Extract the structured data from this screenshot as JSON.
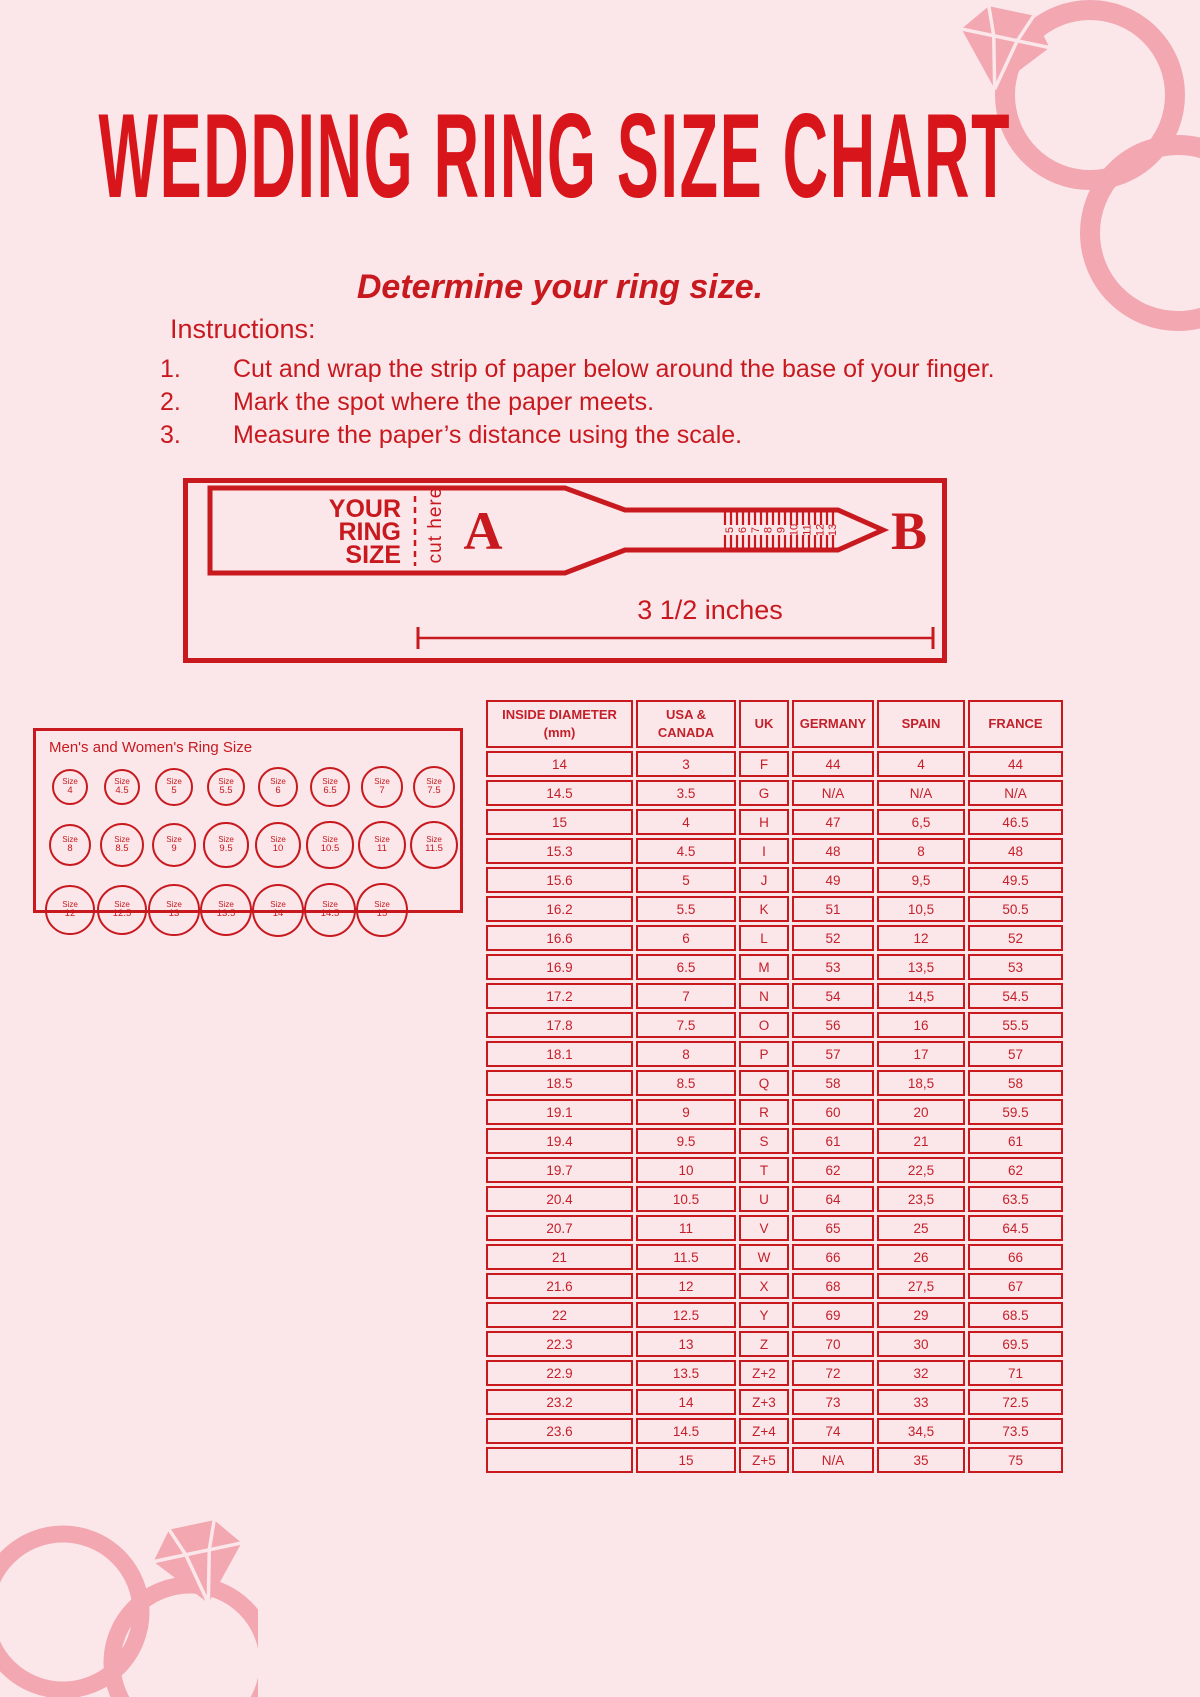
{
  "page": {
    "title": "WEDDING RING SIZE CHART",
    "subtitle": "Determine your ring size.",
    "bg_color": "#fbe7ea",
    "accent_red": "#c8191f",
    "decor_pink": "#f2a7b1"
  },
  "instructions": {
    "heading": "Instructions:",
    "items": [
      {
        "num": "1.",
        "text": "Cut and wrap the strip of paper below around the base of your finger."
      },
      {
        "num": "2.",
        "text": "Mark the spot where the paper meets."
      },
      {
        "num": "3.",
        "text": "Measure the paper’s distance using the scale."
      }
    ]
  },
  "sizer": {
    "label_line1": "YOUR",
    "label_line2": "RING",
    "label_line3": "SIZE",
    "cut_here": "cut here",
    "point_a": "A",
    "point_b": "B",
    "scale_numbers": [
      "5",
      "6",
      "7",
      "8",
      "9",
      "10",
      "11",
      "12",
      "13"
    ],
    "length_label": "3 1/2 inches"
  },
  "ring_sizes": {
    "heading": "Men's and Women's Ring Size",
    "size_word": "Size",
    "sizes": [
      "4",
      "4.5",
      "5",
      "5.5",
      "6",
      "6.5",
      "7",
      "7.5",
      "8",
      "8.5",
      "9",
      "9.5",
      "10",
      "10.5",
      "11",
      "11.5",
      "12",
      "12.5",
      "13",
      "13.5",
      "14",
      "14.5",
      "15"
    ]
  },
  "size_table": {
    "headers": [
      {
        "line1": "INSIDE DIAMETER",
        "line2": "(mm)"
      },
      {
        "line1": "USA &",
        "line2": "CANADA"
      },
      {
        "line1": "UK",
        "line2": ""
      },
      {
        "line1": "GERMANY",
        "line2": ""
      },
      {
        "line1": "SPAIN",
        "line2": ""
      },
      {
        "line1": "FRANCE",
        "line2": ""
      }
    ],
    "rows": [
      [
        "14",
        "3",
        "F",
        "44",
        "4",
        "44"
      ],
      [
        "14.5",
        "3.5",
        "G",
        "N/A",
        "N/A",
        "N/A"
      ],
      [
        "15",
        "4",
        "H",
        "47",
        "6,5",
        "46.5"
      ],
      [
        "15.3",
        "4.5",
        "I",
        "48",
        "8",
        "48"
      ],
      [
        "15.6",
        "5",
        "J",
        "49",
        "9,5",
        "49.5"
      ],
      [
        "16.2",
        "5.5",
        "K",
        "51",
        "10,5",
        "50.5"
      ],
      [
        "16.6",
        "6",
        "L",
        "52",
        "12",
        "52"
      ],
      [
        "16.9",
        "6.5",
        "M",
        "53",
        "13,5",
        "53"
      ],
      [
        "17.2",
        "7",
        "N",
        "54",
        "14,5",
        "54.5"
      ],
      [
        "17.8",
        "7.5",
        "O",
        "56",
        "16",
        "55.5"
      ],
      [
        "18.1",
        "8",
        "P",
        "57",
        "17",
        "57"
      ],
      [
        "18.5",
        "8.5",
        "Q",
        "58",
        "18,5",
        "58"
      ],
      [
        "19.1",
        "9",
        "R",
        "60",
        "20",
        "59.5"
      ],
      [
        "19.4",
        "9.5",
        "S",
        "61",
        "21",
        "61"
      ],
      [
        "19.7",
        "10",
        "T",
        "62",
        "22,5",
        "62"
      ],
      [
        "20.4",
        "10.5",
        "U",
        "64",
        "23,5",
        "63.5"
      ],
      [
        "20.7",
        "11",
        "V",
        "65",
        "25",
        "64.5"
      ],
      [
        "21",
        "11.5",
        "W",
        "66",
        "26",
        "66"
      ],
      [
        "21.6",
        "12",
        "X",
        "68",
        "27,5",
        "67"
      ],
      [
        "22",
        "12.5",
        "Y",
        "69",
        "29",
        "68.5"
      ],
      [
        "22.3",
        "13",
        "Z",
        "70",
        "30",
        "69.5"
      ],
      [
        "22.9",
        "13.5",
        "Z+2",
        "72",
        "32",
        "71"
      ],
      [
        "23.2",
        "14",
        "Z+3",
        "73",
        "33",
        "72.5"
      ],
      [
        "23.6",
        "14.5",
        "Z+4",
        "74",
        "34,5",
        "73.5"
      ],
      [
        "",
        "15",
        "Z+5",
        "N/A",
        "35",
        "75"
      ]
    ]
  }
}
